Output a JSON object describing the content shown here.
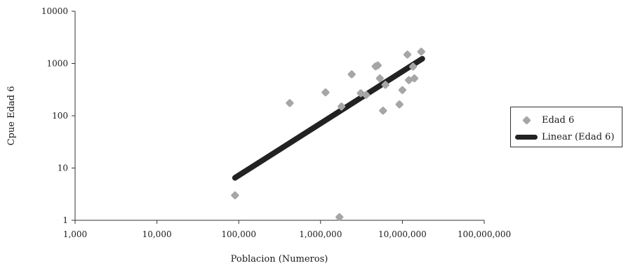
{
  "chart_data": {
    "type": "scatter",
    "title": "",
    "xlabel": "Poblacion (Numeros)",
    "ylabel": "Cpue Edad 6",
    "x_scale": "log",
    "y_scale": "log",
    "xlim": [
      1000,
      100000000
    ],
    "ylim": [
      1,
      10000
    ],
    "x_ticks": [
      1000,
      10000,
      100000,
      1000000,
      10000000,
      100000000
    ],
    "x_tick_labels": [
      "1,000",
      "10,000",
      "100,000",
      "1,000,000",
      "10,000,000",
      "100,000,000"
    ],
    "y_ticks": [
      1,
      10,
      100,
      1000,
      10000
    ],
    "y_tick_labels": [
      "1",
      "10",
      "100",
      "1000",
      "10000"
    ],
    "grid": false,
    "legend_position": "right",
    "series": [
      {
        "name": "Edad 6",
        "kind": "scatter",
        "color": "#a6a6a6",
        "points": [
          {
            "x": 90000,
            "y": 3
          },
          {
            "x": 420000,
            "y": 175
          },
          {
            "x": 1150000,
            "y": 280
          },
          {
            "x": 1700000,
            "y": 1.15
          },
          {
            "x": 1800000,
            "y": 150
          },
          {
            "x": 2400000,
            "y": 620
          },
          {
            "x": 3100000,
            "y": 270
          },
          {
            "x": 3600000,
            "y": 250
          },
          {
            "x": 4700000,
            "y": 880
          },
          {
            "x": 5000000,
            "y": 920
          },
          {
            "x": 5300000,
            "y": 520
          },
          {
            "x": 5800000,
            "y": 125
          },
          {
            "x": 6200000,
            "y": 390
          },
          {
            "x": 9200000,
            "y": 165
          },
          {
            "x": 10000000,
            "y": 310
          },
          {
            "x": 11500000,
            "y": 1480
          },
          {
            "x": 12000000,
            "y": 480
          },
          {
            "x": 13500000,
            "y": 870
          },
          {
            "x": 14000000,
            "y": 520
          },
          {
            "x": 17000000,
            "y": 1680
          }
        ]
      },
      {
        "name": "Linear (Edad 6)",
        "kind": "trendline",
        "color": "#222222",
        "points": [
          {
            "x": 90000,
            "y": 6.5
          },
          {
            "x": 17500000,
            "y": 1230
          }
        ]
      }
    ]
  }
}
